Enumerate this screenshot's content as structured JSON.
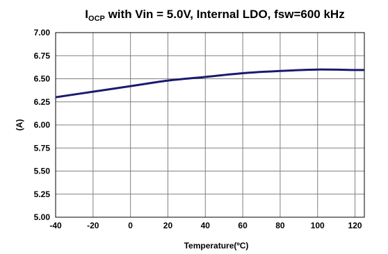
{
  "chart_data": {
    "type": "line",
    "title": {
      "main": "I",
      "subscript": "OCP",
      "rest": " with Vin = 5.0V, Internal LDO, fsw=600 kHz"
    },
    "xlabel": "Temperature(ºC)",
    "ylabel": "(A)",
    "xlim": [
      -40,
      125
    ],
    "ylim": [
      5.0,
      7.0
    ],
    "x_ticks": [
      -40,
      -20,
      0,
      20,
      40,
      60,
      80,
      100,
      120
    ],
    "x_tick_labels": [
      "-40",
      "-20",
      "0",
      "20",
      "40",
      "60",
      "80",
      "100",
      "120"
    ],
    "y_ticks": [
      5.0,
      5.25,
      5.5,
      5.75,
      6.0,
      6.25,
      6.5,
      6.75,
      7.0
    ],
    "y_tick_labels": [
      "5.00",
      "5.25",
      "5.50",
      "5.75",
      "6.00",
      "6.25",
      "6.50",
      "6.75",
      "7.00"
    ],
    "grid": true,
    "legend": "none",
    "series": [
      {
        "color": "#1a1a6e",
        "x": [
          -40,
          -20,
          0,
          20,
          40,
          60,
          80,
          100,
          120,
          125
        ],
        "y": [
          6.3,
          6.36,
          6.42,
          6.48,
          6.52,
          6.56,
          6.585,
          6.6,
          6.595,
          6.595
        ]
      }
    ]
  }
}
